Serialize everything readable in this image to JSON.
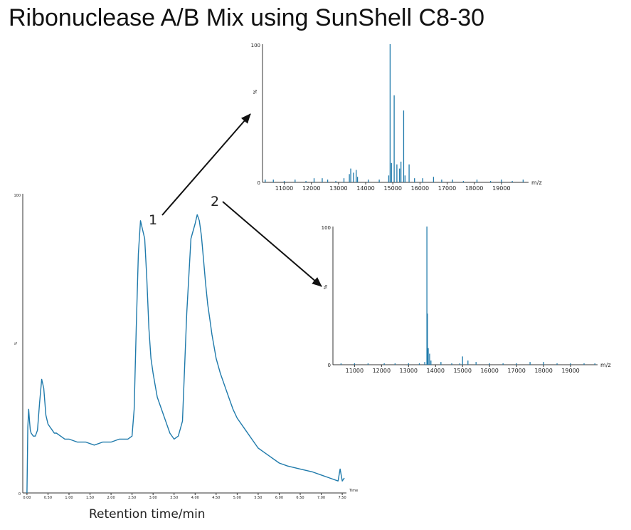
{
  "title": "Ribonuclease A/B Mix using SunShell C8-30",
  "colors": {
    "trace": "#1f7aab",
    "axis": "#333333",
    "arrow": "#111111",
    "text": "#222222"
  },
  "annotations": {
    "peak1": "1",
    "peak2": "2"
  },
  "chart_data": [
    {
      "type": "line",
      "id": "chromatogram",
      "xlabel": "Retention time/min",
      "ylabel": "%",
      "x_unit_label": "Time",
      "ytick_label": "100",
      "ybottom_label": "0",
      "xlim": [
        -0.1,
        7.6
      ],
      "ylim": [
        0,
        100
      ],
      "xticks": [
        "0.00",
        "0.50",
        "1.00",
        "1.50",
        "2.00",
        "2.50",
        "3.00",
        "3.50",
        "4.00",
        "4.50",
        "5.00",
        "5.50",
        "6.00",
        "6.50",
        "7.00",
        "7.50"
      ],
      "x": [
        0.0,
        0.02,
        0.04,
        0.06,
        0.08,
        0.1,
        0.15,
        0.2,
        0.25,
        0.3,
        0.35,
        0.4,
        0.45,
        0.5,
        0.55,
        0.6,
        0.65,
        0.7,
        0.8,
        0.9,
        1.0,
        1.2,
        1.4,
        1.6,
        1.8,
        2.0,
        2.2,
        2.4,
        2.5,
        2.55,
        2.6,
        2.65,
        2.7,
        2.75,
        2.8,
        2.85,
        2.9,
        2.95,
        3.0,
        3.05,
        3.1,
        3.2,
        3.3,
        3.4,
        3.5,
        3.6,
        3.7,
        3.8,
        3.9,
        4.0,
        4.05,
        4.1,
        4.15,
        4.2,
        4.25,
        4.3,
        4.35,
        4.4,
        4.5,
        4.6,
        4.7,
        4.8,
        4.9,
        5.0,
        5.2,
        5.4,
        5.5,
        5.6,
        5.8,
        6.0,
        6.2,
        6.5,
        6.8,
        7.0,
        7.2,
        7.4,
        7.45,
        7.5,
        7.55
      ],
      "values": [
        0,
        22,
        28,
        24,
        21,
        20,
        19,
        19,
        21,
        30,
        38,
        35,
        26,
        23,
        22,
        21,
        20,
        20,
        19,
        18,
        18,
        17,
        17,
        16,
        17,
        17,
        18,
        18,
        19,
        28,
        55,
        80,
        91,
        88,
        85,
        72,
        55,
        45,
        40,
        36,
        32,
        28,
        24,
        20,
        18,
        19,
        24,
        60,
        85,
        90,
        93,
        91,
        86,
        78,
        70,
        63,
        58,
        53,
        45,
        40,
        36,
        32,
        28,
        25,
        21,
        17,
        15,
        14,
        12,
        10,
        9,
        8,
        7,
        6,
        5,
        4,
        8,
        4,
        5
      ]
    },
    {
      "type": "line",
      "id": "mass-spectrum-1",
      "xlabel": "m/z",
      "ylabel": "%",
      "ytick_label": "100",
      "ybottom_label": "0",
      "xlim": [
        10200,
        20000
      ],
      "ylim": [
        0,
        100
      ],
      "xticks": [
        11000,
        12000,
        13000,
        14000,
        15000,
        16000,
        17000,
        18000,
        19000
      ],
      "x": [
        10300,
        10600,
        11000,
        11400,
        11800,
        12100,
        12400,
        12600,
        12900,
        13200,
        13400,
        13450,
        13550,
        13650,
        13700,
        14100,
        14500,
        14850,
        14900,
        14950,
        15050,
        15150,
        15250,
        15300,
        15400,
        15450,
        15600,
        15800,
        16100,
        16500,
        16800,
        17200,
        17600,
        18100,
        18600,
        19000,
        19400,
        19800
      ],
      "values": [
        2,
        2,
        1,
        2,
        1,
        3,
        3,
        2,
        1,
        3,
        6,
        10,
        7,
        9,
        4,
        2,
        2,
        5,
        100,
        14,
        63,
        13,
        10,
        15,
        52,
        5,
        13,
        3,
        3,
        4,
        2,
        2,
        1,
        2,
        1,
        2,
        1,
        2
      ]
    },
    {
      "type": "line",
      "id": "mass-spectrum-2",
      "xlabel": "m/z",
      "ylabel": "%",
      "ytick_label": "100",
      "ybottom_label": "0",
      "xlim": [
        10200,
        20000
      ],
      "ylim": [
        0,
        100
      ],
      "xticks": [
        11000,
        12000,
        13000,
        14000,
        15000,
        16000,
        17000,
        18000,
        19000
      ],
      "x": [
        10500,
        11000,
        11500,
        12100,
        12500,
        13000,
        13400,
        13600,
        13680,
        13700,
        13730,
        13780,
        13830,
        14200,
        14600,
        14900,
        15000,
        15200,
        15500,
        16000,
        16500,
        17000,
        17500,
        18000,
        18500,
        19000,
        19500,
        19900
      ],
      "values": [
        1,
        1,
        1,
        1,
        1,
        1,
        1,
        2,
        100,
        37,
        12,
        8,
        3,
        2,
        1,
        1,
        6,
        3,
        2,
        1,
        1,
        1,
        2,
        2,
        1,
        1,
        1,
        1
      ]
    }
  ]
}
